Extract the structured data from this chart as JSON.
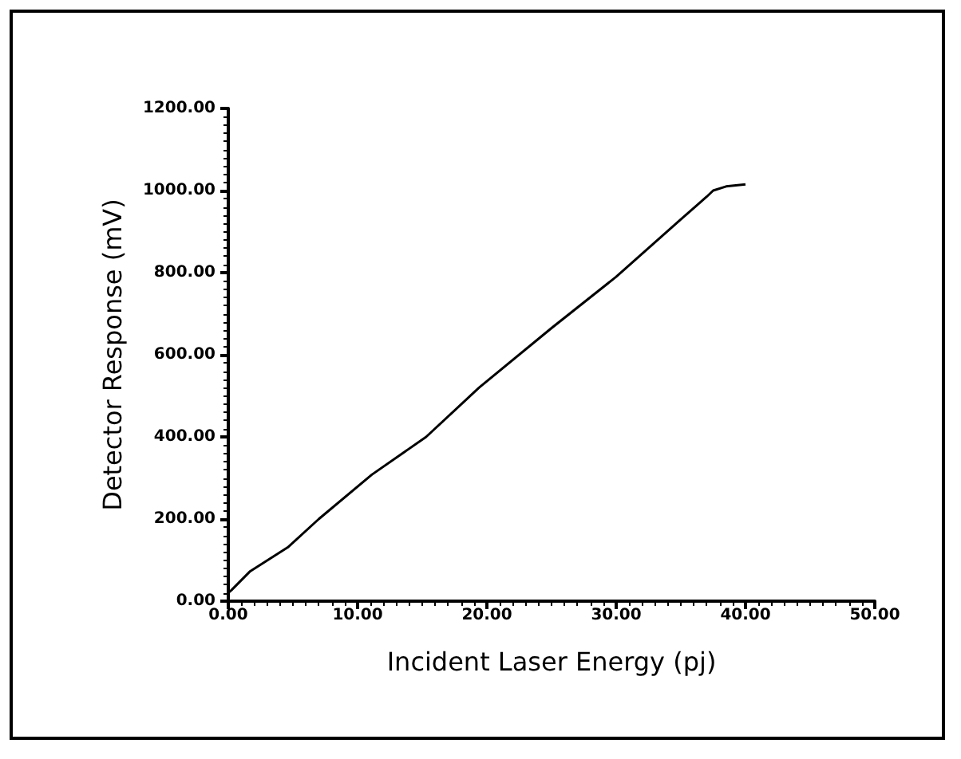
{
  "chart_data": {
    "type": "line",
    "xlabel": "Incident Laser Energy (pj)",
    "ylabel": "Detector Response (mV)",
    "x": [
      0,
      0.25,
      1.7,
      4.6,
      7,
      11.1,
      15.3,
      19.4,
      25,
      30,
      35,
      37,
      37.5,
      38.5,
      40
    ],
    "series": [
      {
        "color": "#000000",
        "values": [
          20,
          27,
          73,
          131,
          200,
          308,
          400,
          520,
          665,
          790,
          930,
          985,
          1000,
          1010,
          1015
        ]
      }
    ],
    "xlim": [
      0,
      50
    ],
    "ylim": [
      0,
      1200
    ],
    "xticks": [
      {
        "value": 0,
        "label": "0.00"
      },
      {
        "value": 10,
        "label": "10.00"
      },
      {
        "value": 20,
        "label": "20.00"
      },
      {
        "value": 30,
        "label": "30.00"
      },
      {
        "value": 40,
        "label": "40.00"
      },
      {
        "value": 50,
        "label": "50.00"
      }
    ],
    "yticks": [
      {
        "value": 0,
        "label": "0.00"
      },
      {
        "value": 200,
        "label": "200.00"
      },
      {
        "value": 400,
        "label": "400.00"
      },
      {
        "value": 600,
        "label": "600.00"
      },
      {
        "value": 800,
        "label": "800.00"
      },
      {
        "value": 1000,
        "label": "1000.00"
      },
      {
        "value": 1200,
        "label": "1200.00"
      }
    ],
    "grid": false,
    "marker": "none",
    "line_style": "solid"
  }
}
